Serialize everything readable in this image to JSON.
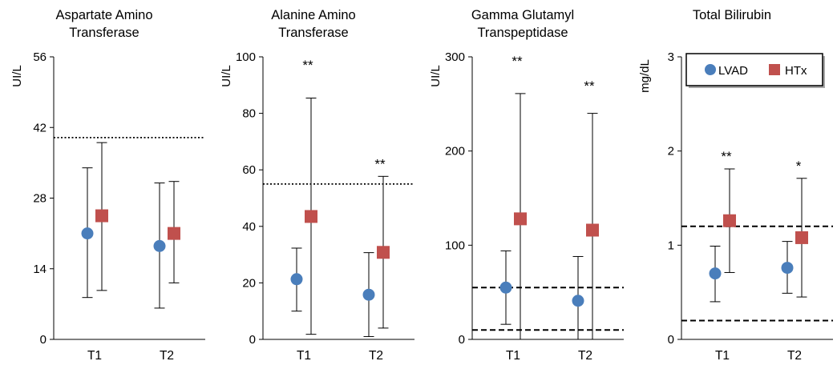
{
  "colors": {
    "LVAD": "#4a7ebb",
    "HTx": "#c0504d",
    "axis": "#000000"
  },
  "legend": {
    "show_in_panel": 3,
    "placement": "top-right",
    "entries": [
      {
        "series": "LVAD",
        "label": "LVAD",
        "marker": "circle"
      },
      {
        "series": "HTx",
        "label": "HTx",
        "marker": "square"
      }
    ]
  },
  "chart_data": [
    {
      "type": "scatter",
      "title": [
        "Aspartate Amino",
        "Transferase"
      ],
      "ylabel": "UI/L",
      "ylim": [
        0,
        56
      ],
      "yticks": [
        0,
        14,
        28,
        42,
        56
      ],
      "categories": [
        "T1",
        "T2"
      ],
      "grid": false,
      "series": [
        {
          "name": "LVAD",
          "values": [
            21,
            18.5
          ],
          "err_low": [
            8.3,
            6.2
          ],
          "err_high": [
            34,
            31
          ]
        },
        {
          "name": "HTx",
          "values": [
            24.5,
            21
          ],
          "err_low": [
            9.7,
            11.2
          ],
          "err_high": [
            39,
            31.3
          ]
        }
      ],
      "reference_lines": [
        {
          "y": 40,
          "style": "dotted"
        }
      ],
      "significance": [
        "",
        ""
      ]
    },
    {
      "type": "scatter",
      "title": [
        "Alanine Amino",
        "Transferase"
      ],
      "ylabel": "UI/L",
      "ylim": [
        0,
        100
      ],
      "yticks": [
        0,
        20,
        40,
        60,
        80,
        100
      ],
      "categories": [
        "T1",
        "T2"
      ],
      "grid": false,
      "series": [
        {
          "name": "LVAD",
          "values": [
            21.3,
            15.8
          ],
          "err_low": [
            10,
            1
          ],
          "err_high": [
            32.3,
            30.7
          ]
        },
        {
          "name": "HTx",
          "values": [
            43.5,
            30.8
          ],
          "err_low": [
            1.8,
            4
          ],
          "err_high": [
            85.4,
            57.7
          ]
        }
      ],
      "reference_lines": [
        {
          "y": 55,
          "style": "dotted"
        }
      ],
      "significance": [
        "**",
        "**"
      ]
    },
    {
      "type": "scatter",
      "title": [
        "Gamma Glutamyl",
        "Transpeptidase"
      ],
      "ylabel": "UI/L",
      "ylim": [
        0,
        300
      ],
      "yticks": [
        0,
        100,
        200,
        300
      ],
      "categories": [
        "T1",
        "T2"
      ],
      "grid": false,
      "series": [
        {
          "name": "LVAD",
          "values": [
            55,
            41
          ],
          "err_low": [
            16,
            0
          ],
          "err_high": [
            94,
            88
          ]
        },
        {
          "name": "HTx",
          "values": [
            128,
            116
          ],
          "err_low": [
            0,
            0
          ],
          "err_high": [
            261,
            240
          ]
        }
      ],
      "reference_lines": [
        {
          "y": 10,
          "style": "dashed"
        },
        {
          "y": 55,
          "style": "dashed"
        }
      ],
      "significance": [
        "**",
        "**"
      ]
    },
    {
      "type": "scatter",
      "title": [
        "Total Bilirubin"
      ],
      "ylabel": "mg/dL",
      "ylim": [
        0,
        3
      ],
      "yticks": [
        0,
        1,
        2,
        3
      ],
      "categories": [
        "T1",
        "T2"
      ],
      "grid": false,
      "series": [
        {
          "name": "LVAD",
          "values": [
            0.7,
            0.76
          ],
          "err_low": [
            0.4,
            0.49
          ],
          "err_high": [
            0.99,
            1.04
          ]
        },
        {
          "name": "HTx",
          "values": [
            1.26,
            1.08
          ],
          "err_low": [
            0.71,
            0.45
          ],
          "err_high": [
            1.81,
            1.71
          ]
        }
      ],
      "reference_lines": [
        {
          "y": 0.2,
          "style": "dashed"
        },
        {
          "y": 1.2,
          "style": "dashed"
        }
      ],
      "significance": [
        "**",
        "*"
      ]
    }
  ]
}
